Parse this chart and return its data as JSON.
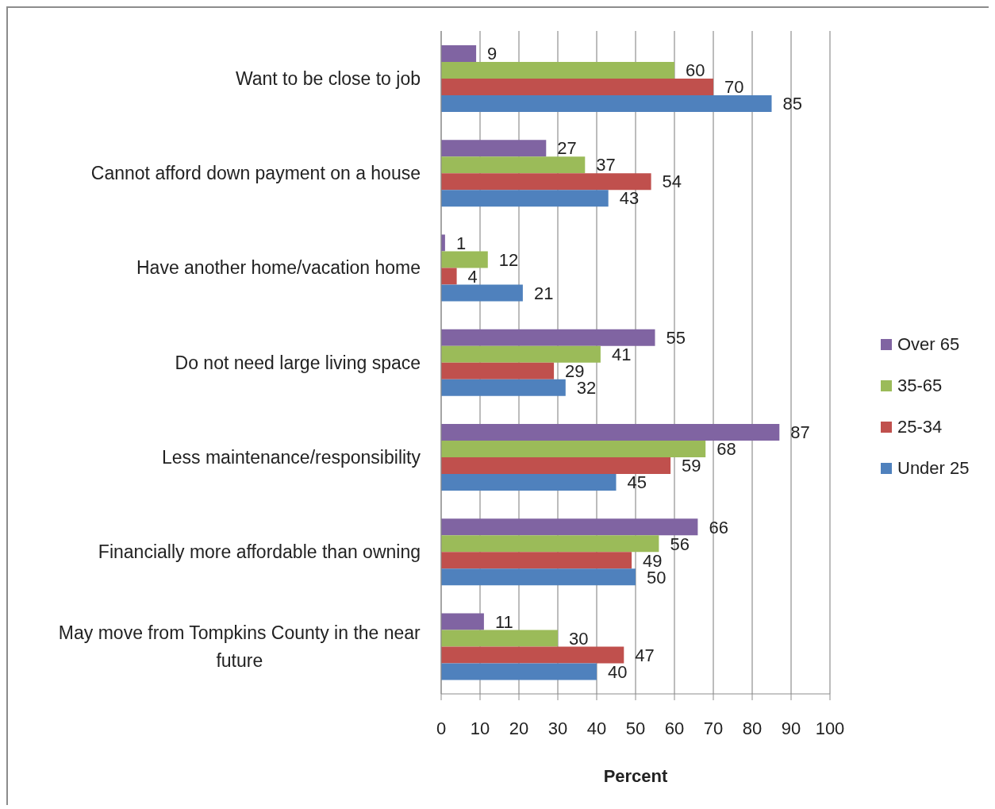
{
  "chart_data": {
    "type": "bar",
    "orientation": "horizontal",
    "categories": [
      "Want to be close to job",
      "Cannot afford down payment on a house",
      "Have another home/vacation home",
      "Do not need large living space",
      "Less maintenance/responsibility",
      "Financially more affordable than owning",
      "May move from Tompkins County in the near future"
    ],
    "series": [
      {
        "name": "Over 65",
        "color": "#8064a2",
        "values": [
          9,
          27,
          1,
          55,
          87,
          66,
          11
        ]
      },
      {
        "name": "35-65",
        "color": "#9bbb59",
        "values": [
          60,
          37,
          12,
          41,
          68,
          56,
          30
        ]
      },
      {
        "name": "25-34",
        "color": "#c0504d",
        "values": [
          70,
          54,
          4,
          29,
          59,
          49,
          47
        ]
      },
      {
        "name": "Under 25",
        "color": "#4f81bd",
        "values": [
          85,
          43,
          21,
          32,
          45,
          50,
          40
        ]
      }
    ],
    "xlabel": "Percent",
    "xlim": [
      0,
      100
    ],
    "xticks": [
      0,
      10,
      20,
      30,
      40,
      50,
      60,
      70,
      80,
      90,
      100
    ],
    "grid": "x",
    "legend": "right",
    "data_labels": true
  }
}
